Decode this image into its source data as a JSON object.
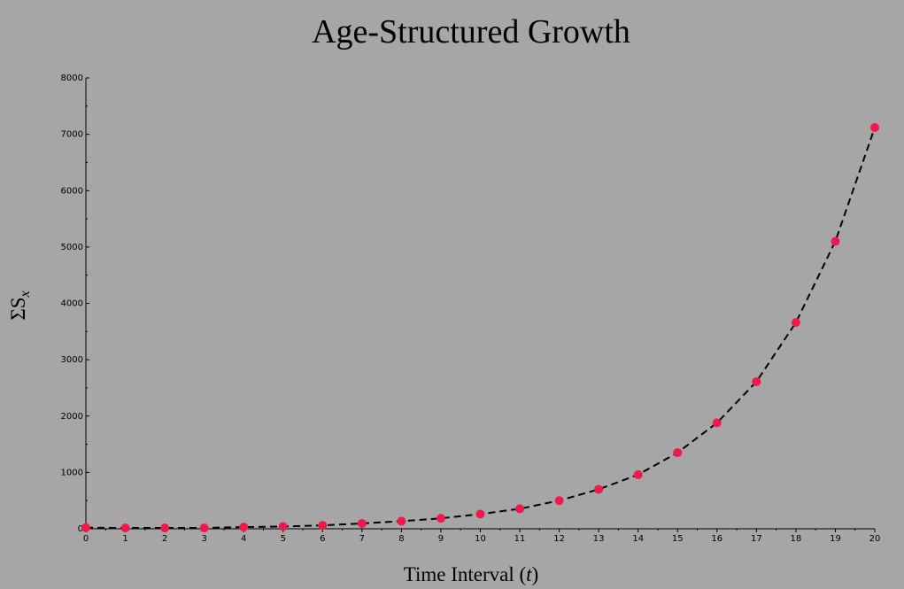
{
  "chart_data": {
    "type": "scatter",
    "title": "Age-Structured Growth",
    "xlabel_prefix": "Time Interval (",
    "xlabel_var": "t",
    "xlabel_suffix": ")",
    "ylabel_sigma": "ΣS",
    "ylabel_sub": "x",
    "xlim": [
      0,
      20
    ],
    "ylim": [
      0,
      8000
    ],
    "x_ticks": [
      0,
      1,
      2,
      3,
      4,
      5,
      6,
      7,
      8,
      9,
      10,
      11,
      12,
      13,
      14,
      15,
      16,
      17,
      18,
      19,
      20
    ],
    "y_ticks": [
      0,
      1000,
      2000,
      3000,
      4000,
      5000,
      6000,
      7000,
      8000
    ],
    "grid": false,
    "series": [
      {
        "style": "points",
        "color": "#f0194d",
        "x": [
          0,
          1,
          2,
          3,
          4,
          5,
          6,
          7,
          8,
          9,
          10,
          11,
          12,
          13,
          14,
          15,
          16,
          17,
          18,
          19,
          20
        ],
        "y": [
          20,
          15,
          15,
          15,
          30,
          40,
          60,
          95,
          135,
          185,
          260,
          355,
          500,
          700,
          960,
          1350,
          1880,
          2610,
          3660,
          5100,
          7120
        ]
      },
      {
        "style": "dashed-line",
        "color": "#000000",
        "x": [
          0,
          1,
          2,
          3,
          4,
          5,
          6,
          7,
          8,
          9,
          10,
          11,
          12,
          13,
          14,
          15,
          16,
          17,
          18,
          19,
          20
        ],
        "y": [
          20,
          15,
          15,
          15,
          30,
          40,
          60,
          95,
          135,
          185,
          260,
          355,
          500,
          700,
          960,
          1350,
          1880,
          2610,
          3660,
          5100,
          7120
        ]
      }
    ]
  }
}
